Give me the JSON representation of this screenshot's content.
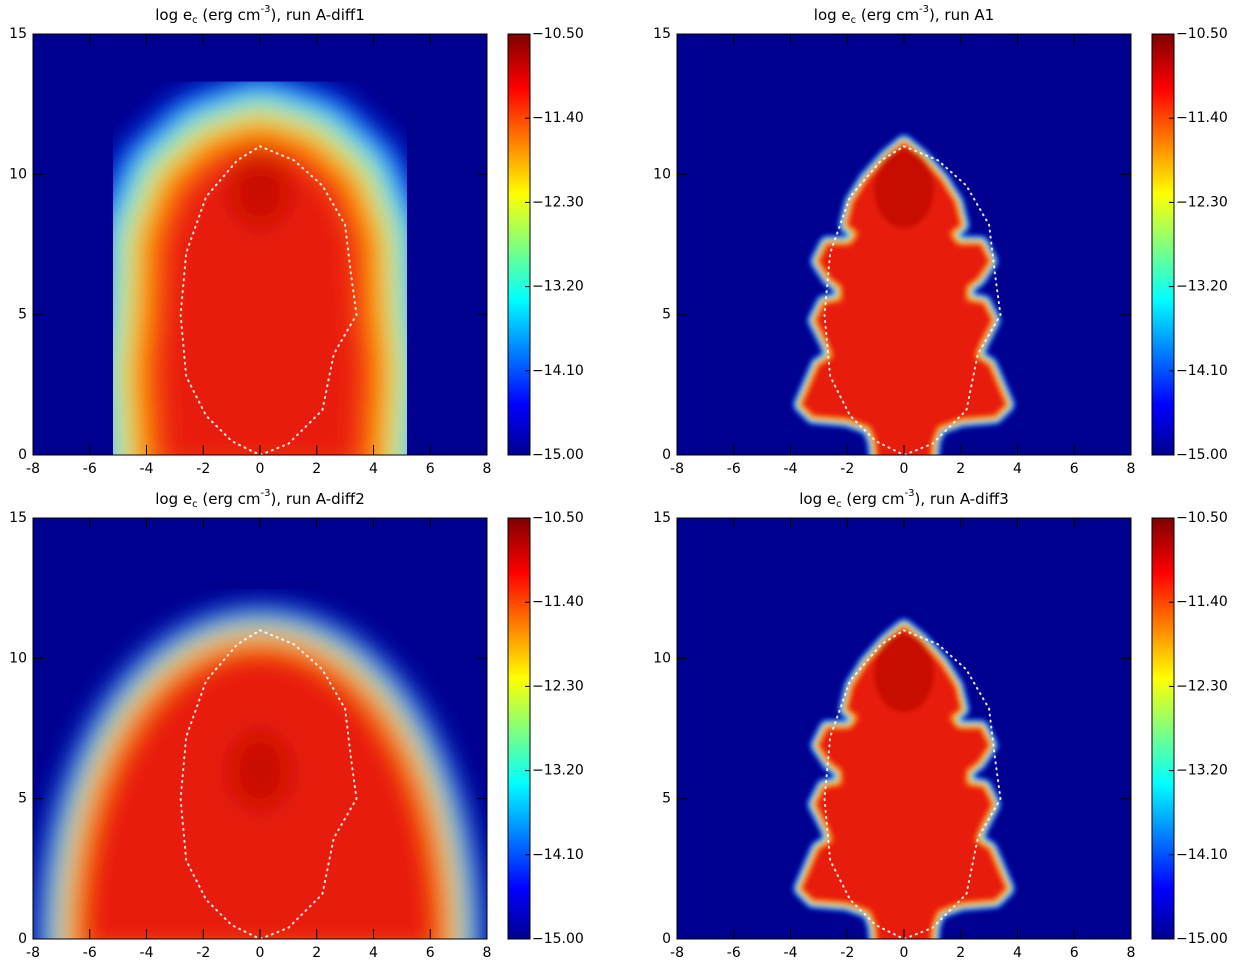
{
  "chart_data": [
    {
      "type": "heatmap",
      "title": [
        "log e",
        "c",
        " (erg cm",
        "-3",
        "), run A-diff1"
      ],
      "xlim": [
        -8,
        8
      ],
      "ylim": [
        0,
        15
      ],
      "xticks": [
        -8,
        -6,
        -4,
        -2,
        0,
        2,
        4,
        6,
        8
      ],
      "yticks": [
        0,
        5,
        10,
        15
      ],
      "colorbar": {
        "lim": [
          -15,
          -10.5
        ],
        "ticks": [
          {
            "value": -10.5,
            "label": "−10.50"
          },
          {
            "value": -11.4,
            "label": "−11.40"
          },
          {
            "value": -12.3,
            "label": "−12.30"
          },
          {
            "value": -13.2,
            "label": "−13.20"
          },
          {
            "value": -14.1,
            "label": "−14.10"
          },
          {
            "value": -15,
            "label": "−15.00"
          }
        ]
      }
    },
    {
      "type": "heatmap",
      "title": [
        "log e",
        "c",
        " (erg cm",
        "-3",
        "), run A1"
      ],
      "xlim": [
        -8,
        8
      ],
      "ylim": [
        0,
        15
      ],
      "xticks": [
        -8,
        -6,
        -4,
        -2,
        0,
        2,
        4,
        6,
        8
      ],
      "yticks": [
        0,
        5,
        10,
        15
      ],
      "colorbar": {
        "lim": [
          -15,
          -10.5
        ],
        "ticks": [
          {
            "value": -10.5,
            "label": "−10.50"
          },
          {
            "value": -11.4,
            "label": "−11.40"
          },
          {
            "value": -12.3,
            "label": "−12.30"
          },
          {
            "value": -13.2,
            "label": "−13.20"
          },
          {
            "value": -14.1,
            "label": "−14.10"
          },
          {
            "value": -15,
            "label": "−15.00"
          }
        ]
      }
    },
    {
      "type": "heatmap",
      "title": [
        "log e",
        "c",
        " (erg cm",
        "-3",
        "), run A-diff2"
      ],
      "xlim": [
        -8,
        8
      ],
      "ylim": [
        0,
        15
      ],
      "xticks": [
        -8,
        -6,
        -4,
        -2,
        0,
        2,
        4,
        6,
        8
      ],
      "yticks": [
        0,
        5,
        10,
        15
      ],
      "colorbar": {
        "lim": [
          -15,
          -10.5
        ],
        "ticks": [
          {
            "value": -10.5,
            "label": "−10.50"
          },
          {
            "value": -11.4,
            "label": "−11.40"
          },
          {
            "value": -12.3,
            "label": "−12.30"
          },
          {
            "value": -13.2,
            "label": "−13.20"
          },
          {
            "value": -14.1,
            "label": "−14.10"
          },
          {
            "value": -15,
            "label": "−15.00"
          }
        ]
      }
    },
    {
      "type": "heatmap",
      "title": [
        "log e",
        "c",
        " (erg cm",
        "-3",
        "), run A-diff3"
      ],
      "xlim": [
        -8,
        8
      ],
      "ylim": [
        0,
        15
      ],
      "xticks": [
        -8,
        -6,
        -4,
        -2,
        0,
        2,
        4,
        6,
        8
      ],
      "yticks": [
        0,
        5,
        10,
        15
      ],
      "colorbar": {
        "lim": [
          -15,
          -10.5
        ],
        "ticks": [
          {
            "value": -10.5,
            "label": "−10.50"
          },
          {
            "value": -11.4,
            "label": "−11.40"
          },
          {
            "value": -12.3,
            "label": "−12.30"
          },
          {
            "value": -13.2,
            "label": "−13.20"
          },
          {
            "value": -14.1,
            "label": "−14.10"
          },
          {
            "value": -15,
            "label": "−15.00"
          }
        ]
      }
    }
  ]
}
